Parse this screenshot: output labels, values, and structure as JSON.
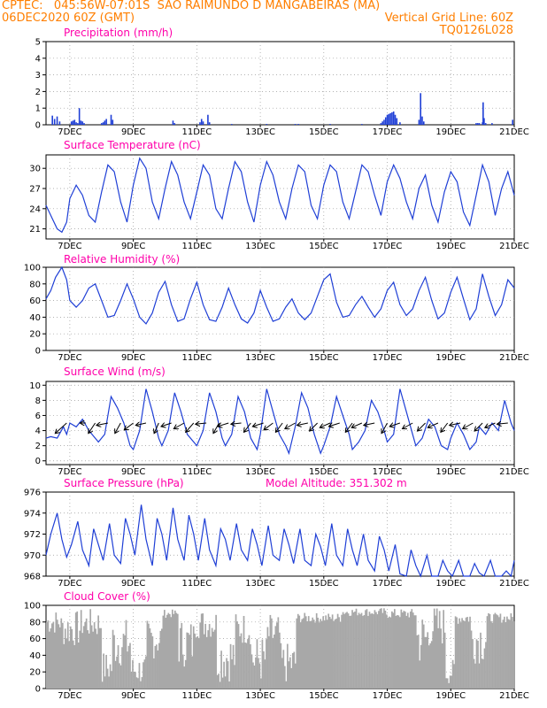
{
  "header": {
    "line1_left": "CPTEC:   045:56W-07:01S  SAO RAIMUNDO D MANGABEIRAS (MA)",
    "line2_left": "06DEC2020 60Z (GMT)",
    "line2_right": "Vertical Grid Line: 60Z",
    "line3_right": "TQ0126L028"
  },
  "colors": {
    "header": "#ff7f00",
    "panel_title": "#ff00aa",
    "line": "#1f3fd6",
    "bar": "#1f3fd6",
    "cloud": "#a8a8a8",
    "wind_arrow": "#000000",
    "grid": "#999999"
  },
  "x_axis_labels": [
    "7DEC",
    "9DEC",
    "11DEC",
    "13DEC",
    "15DEC",
    "17DEC",
    "19DEC",
    "21DEC"
  ],
  "chart_data": [
    {
      "type": "bar",
      "title": "Precipitation (mm/h)",
      "ylim": [
        0,
        5
      ],
      "yticks": [
        0,
        1,
        2,
        3,
        4,
        5
      ],
      "x_range_days": [
        6.25,
        21
      ],
      "x": [
        6.45,
        6.52,
        6.6,
        6.68,
        7.05,
        7.1,
        7.15,
        7.2,
        7.25,
        7.3,
        7.35,
        7.4,
        7.45,
        8.0,
        8.05,
        8.1,
        8.15,
        8.3,
        8.35,
        10.25,
        10.3,
        11.1,
        11.15,
        11.2,
        11.35,
        11.4,
        12.1,
        13.2,
        14.1,
        14.2,
        15.2,
        16.2,
        16.8,
        16.85,
        16.9,
        16.95,
        17.0,
        17.05,
        17.1,
        17.15,
        17.2,
        17.25,
        17.3,
        17.4,
        18.0,
        18.05,
        18.1,
        18.15,
        19.8,
        19.85,
        19.9,
        20.0,
        20.02,
        20.05,
        20.1,
        20.3,
        20.95
      ],
      "values": [
        0.55,
        0.35,
        0.5,
        0.2,
        0.2,
        0.25,
        0.3,
        0.15,
        0.1,
        1.0,
        0.25,
        0.2,
        0.1,
        0.1,
        0.15,
        0.25,
        0.35,
        0.6,
        0.3,
        0.25,
        0.1,
        0.15,
        0.35,
        0.2,
        0.6,
        0.15,
        0.05,
        0.05,
        0.05,
        0.05,
        0.05,
        0.05,
        0.1,
        0.2,
        0.3,
        0.45,
        0.6,
        0.65,
        0.7,
        0.75,
        0.8,
        0.6,
        0.4,
        0.15,
        0.3,
        1.9,
        0.5,
        0.2,
        0.1,
        0.1,
        0.1,
        0.15,
        1.35,
        0.4,
        0.1,
        0.1,
        0.3
      ]
    },
    {
      "type": "line",
      "title": "Surface Temperature (nC)",
      "ylim": [
        19.5,
        32
      ],
      "yticks": [
        21,
        24,
        27,
        30
      ],
      "x": [
        6.25,
        6.45,
        6.6,
        6.75,
        6.9,
        7.0,
        7.2,
        7.4,
        7.6,
        7.8,
        8.0,
        8.2,
        8.4,
        8.6,
        8.8,
        9.0,
        9.2,
        9.4,
        9.6,
        9.8,
        10.0,
        10.2,
        10.4,
        10.6,
        10.8,
        11.0,
        11.2,
        11.4,
        11.6,
        11.8,
        12.0,
        12.2,
        12.4,
        12.6,
        12.8,
        13.0,
        13.2,
        13.4,
        13.6,
        13.8,
        14.0,
        14.2,
        14.4,
        14.6,
        14.8,
        15.0,
        15.2,
        15.4,
        15.6,
        15.8,
        16.0,
        16.2,
        16.4,
        16.6,
        16.8,
        17.0,
        17.2,
        17.4,
        17.6,
        17.8,
        18.0,
        18.2,
        18.4,
        18.6,
        18.8,
        19.0,
        19.2,
        19.4,
        19.6,
        19.8,
        20.0,
        20.2,
        20.4,
        20.6,
        20.8,
        21.0
      ],
      "values": [
        24.5,
        22.5,
        21.0,
        20.5,
        22.0,
        25.5,
        27.5,
        26.0,
        23.0,
        22.0,
        26.5,
        30.5,
        29.5,
        25.0,
        22.0,
        27.5,
        31.5,
        30.0,
        25.0,
        22.5,
        27.0,
        31.0,
        29.0,
        25.0,
        22.5,
        26.5,
        30.5,
        29.0,
        24.0,
        22.5,
        27.0,
        31.0,
        29.5,
        25.0,
        22.0,
        27.5,
        31.0,
        29.0,
        25.0,
        22.5,
        27.0,
        30.5,
        29.5,
        24.5,
        22.5,
        27.5,
        30.5,
        29.5,
        25.0,
        22.5,
        26.5,
        30.5,
        29.5,
        26.0,
        23.0,
        28.0,
        30.5,
        28.5,
        25.0,
        22.5,
        27.0,
        29.0,
        24.5,
        22.0,
        26.5,
        29.5,
        28.0,
        23.5,
        21.5,
        26.0,
        30.5,
        28.0,
        23.0,
        27.0,
        29.5,
        26.0
      ]
    },
    {
      "type": "line",
      "title": "Relative Humidity (%)",
      "ylim": [
        0,
        100
      ],
      "yticks": [
        0,
        20,
        40,
        60,
        80,
        100
      ],
      "x": [
        6.25,
        6.4,
        6.55,
        6.75,
        6.9,
        7.0,
        7.2,
        7.4,
        7.6,
        7.8,
        8.0,
        8.2,
        8.4,
        8.6,
        8.8,
        9.0,
        9.2,
        9.4,
        9.6,
        9.8,
        10.0,
        10.2,
        10.4,
        10.6,
        10.8,
        11.0,
        11.2,
        11.4,
        11.6,
        11.8,
        12.0,
        12.2,
        12.4,
        12.6,
        12.8,
        13.0,
        13.2,
        13.4,
        13.6,
        13.8,
        14.0,
        14.2,
        14.4,
        14.6,
        14.8,
        15.0,
        15.2,
        15.4,
        15.6,
        15.8,
        16.0,
        16.2,
        16.4,
        16.6,
        16.8,
        17.0,
        17.2,
        17.4,
        17.6,
        17.8,
        18.0,
        18.2,
        18.4,
        18.6,
        18.8,
        19.0,
        19.2,
        19.4,
        19.6,
        19.8,
        20.0,
        20.2,
        20.4,
        20.6,
        20.8,
        21.0
      ],
      "values": [
        62,
        72,
        88,
        100,
        85,
        60,
        52,
        60,
        75,
        80,
        60,
        40,
        42,
        60,
        80,
        62,
        40,
        32,
        45,
        70,
        83,
        55,
        35,
        38,
        62,
        82,
        55,
        37,
        35,
        52,
        75,
        55,
        38,
        33,
        45,
        72,
        52,
        35,
        38,
        52,
        62,
        45,
        37,
        45,
        65,
        85,
        92,
        58,
        40,
        42,
        55,
        65,
        52,
        40,
        50,
        72,
        82,
        55,
        42,
        50,
        72,
        88,
        60,
        38,
        45,
        70,
        88,
        62,
        37,
        50,
        92,
        65,
        42,
        55,
        85,
        75
      ]
    },
    {
      "type": "line",
      "title": "Surface Wind (m/s)",
      "ylim": [
        -0.5,
        10.5
      ],
      "yticks": [
        0,
        2,
        4,
        6,
        8,
        10
      ],
      "x": [
        6.25,
        6.4,
        6.6,
        6.8,
        6.9,
        7.0,
        7.2,
        7.4,
        7.6,
        7.8,
        7.9,
        8.1,
        8.3,
        8.5,
        8.7,
        8.9,
        9.0,
        9.2,
        9.4,
        9.6,
        9.8,
        9.9,
        10.1,
        10.3,
        10.5,
        10.7,
        10.9,
        11.0,
        11.2,
        11.4,
        11.6,
        11.8,
        11.9,
        12.1,
        12.3,
        12.5,
        12.7,
        12.9,
        13.0,
        13.2,
        13.4,
        13.6,
        13.8,
        13.9,
        14.1,
        14.3,
        14.5,
        14.7,
        14.9,
        15.0,
        15.2,
        15.4,
        15.6,
        15.8,
        15.9,
        16.1,
        16.3,
        16.5,
        16.7,
        16.9,
        17.0,
        17.2,
        17.4,
        17.6,
        17.8,
        17.9,
        18.1,
        18.3,
        18.5,
        18.7,
        18.9,
        19.0,
        19.2,
        19.4,
        19.6,
        19.8,
        19.9,
        20.1,
        20.3,
        20.5,
        20.7,
        20.9,
        21.0
      ],
      "values": [
        3.0,
        3.2,
        3.0,
        4.5,
        3.5,
        5.0,
        4.5,
        5.5,
        4.0,
        3.0,
        2.5,
        3.5,
        8.5,
        7.0,
        5.0,
        2.0,
        1.5,
        4.0,
        9.5,
        6.5,
        3.0,
        2.0,
        4.0,
        9.0,
        6.5,
        3.5,
        2.5,
        2.0,
        4.0,
        9.0,
        6.5,
        3.0,
        2.0,
        3.5,
        8.5,
        6.5,
        3.0,
        1.5,
        3.5,
        9.5,
        6.5,
        3.5,
        2.0,
        1.0,
        4.5,
        9.0,
        7.0,
        3.5,
        1.0,
        2.0,
        4.5,
        8.5,
        6.0,
        3.5,
        1.5,
        2.5,
        4.0,
        8.0,
        6.5,
        4.0,
        2.5,
        3.5,
        9.5,
        6.5,
        3.5,
        2.0,
        3.0,
        5.5,
        4.5,
        2.0,
        1.5,
        3.0,
        5.0,
        3.5,
        1.5,
        2.5,
        4.5,
        3.5,
        5.0,
        4.0,
        8.0,
        5.0,
        4.0
      ]
    },
    {
      "type": "line",
      "title": "Surface Pressure (hPa)",
      "annotation": "Model Altitude: 351.302  m",
      "ylim": [
        968,
        976
      ],
      "yticks": [
        968,
        970,
        972,
        974,
        976
      ],
      "x": [
        6.25,
        6.4,
        6.6,
        6.75,
        6.9,
        7.05,
        7.25,
        7.4,
        7.6,
        7.75,
        7.9,
        8.05,
        8.25,
        8.4,
        8.6,
        8.75,
        8.9,
        9.05,
        9.25,
        9.4,
        9.6,
        9.75,
        9.9,
        10.05,
        10.25,
        10.4,
        10.6,
        10.75,
        10.9,
        11.05,
        11.25,
        11.4,
        11.6,
        11.75,
        11.9,
        12.05,
        12.25,
        12.4,
        12.6,
        12.75,
        12.9,
        13.05,
        13.25,
        13.4,
        13.6,
        13.75,
        13.9,
        14.05,
        14.25,
        14.4,
        14.6,
        14.75,
        14.9,
        15.05,
        15.25,
        15.4,
        15.6,
        15.75,
        15.9,
        16.05,
        16.25,
        16.4,
        16.6,
        16.75,
        16.9,
        17.05,
        17.25,
        17.4,
        17.6,
        17.75,
        17.9,
        18.05,
        18.25,
        18.4,
        18.6,
        18.75,
        18.9,
        19.05,
        19.25,
        19.4,
        19.6,
        19.75,
        19.9,
        20.05,
        20.25,
        20.4,
        20.6,
        20.75,
        20.9,
        21.0
      ],
      "values": [
        970.0,
        972.0,
        974.0,
        971.5,
        969.8,
        971.0,
        973.2,
        970.5,
        969.0,
        972.5,
        971.0,
        969.5,
        973.0,
        970.0,
        969.2,
        973.5,
        972.0,
        970.0,
        974.8,
        971.5,
        969.0,
        973.5,
        972.0,
        969.5,
        974.5,
        971.5,
        969.5,
        973.8,
        972.0,
        969.5,
        973.5,
        970.5,
        969.0,
        972.5,
        971.5,
        969.5,
        973.0,
        970.5,
        969.5,
        972.5,
        971.0,
        969.0,
        972.8,
        970.0,
        969.5,
        972.5,
        971.0,
        969.2,
        972.5,
        969.5,
        969.0,
        972.0,
        970.8,
        969.0,
        973.0,
        970.0,
        969.0,
        972.5,
        970.5,
        969.0,
        972.0,
        969.5,
        968.5,
        971.8,
        970.5,
        968.5,
        971.0,
        968.2,
        968.0,
        970.5,
        969.0,
        968.0,
        970.0,
        968.0,
        968.0,
        969.5,
        968.5,
        968.0,
        969.5,
        968.0,
        968.0,
        969.2,
        968.3,
        968.0,
        969.5,
        968.0,
        968.0,
        968.5,
        968.0,
        969.5
      ]
    },
    {
      "type": "bar",
      "title": "Cloud Cover (%)",
      "ylim": [
        0,
        100
      ],
      "yticks": [
        0,
        20,
        40,
        60,
        80,
        100
      ],
      "x_range_days": [
        6.25,
        21
      ],
      "segments": [
        {
          "from": 6.25,
          "to": 6.7,
          "base": 80,
          "var": 15
        },
        {
          "from": 6.7,
          "to": 7.3,
          "base": 72,
          "var": 22
        },
        {
          "from": 7.3,
          "to": 8.0,
          "base": 78,
          "var": 18
        },
        {
          "from": 8.0,
          "to": 8.3,
          "base": 25,
          "var": 20
        },
        {
          "from": 8.3,
          "to": 8.9,
          "base": 55,
          "var": 30
        },
        {
          "from": 8.9,
          "to": 9.4,
          "base": 22,
          "var": 18
        },
        {
          "from": 9.4,
          "to": 9.9,
          "base": 60,
          "var": 25
        },
        {
          "from": 9.9,
          "to": 10.4,
          "base": 90,
          "var": 5
        },
        {
          "from": 10.4,
          "to": 10.9,
          "base": 55,
          "var": 30
        },
        {
          "from": 10.9,
          "to": 11.6,
          "base": 78,
          "var": 18
        },
        {
          "from": 11.6,
          "to": 12.2,
          "base": 38,
          "var": 30
        },
        {
          "from": 12.2,
          "to": 12.7,
          "base": 72,
          "var": 20
        },
        {
          "from": 12.7,
          "to": 13.2,
          "base": 35,
          "var": 30
        },
        {
          "from": 13.2,
          "to": 13.6,
          "base": 65,
          "var": 25
        },
        {
          "from": 13.6,
          "to": 14.1,
          "base": 30,
          "var": 25
        },
        {
          "from": 14.1,
          "to": 15.5,
          "base": 85,
          "var": 6
        },
        {
          "from": 15.5,
          "to": 16.9,
          "base": 92,
          "var": 5
        },
        {
          "from": 16.9,
          "to": 17.9,
          "base": 90,
          "var": 6
        },
        {
          "from": 17.9,
          "to": 18.3,
          "base": 60,
          "var": 35
        },
        {
          "from": 18.3,
          "to": 18.8,
          "base": 75,
          "var": 25
        },
        {
          "from": 18.8,
          "to": 19.1,
          "base": 20,
          "var": 15
        },
        {
          "from": 19.1,
          "to": 19.6,
          "base": 85,
          "var": 8
        },
        {
          "from": 19.6,
          "to": 20.1,
          "base": 60,
          "var": 30
        },
        {
          "from": 20.1,
          "to": 21.0,
          "base": 85,
          "var": 6
        }
      ]
    }
  ],
  "wind_vectors": [
    {
      "x": 6.9,
      "u": -1.0,
      "v": 0.9
    },
    {
      "x": 7.5,
      "u": -0.5,
      "v": 0.0
    },
    {
      "x": 7.8,
      "u": -0.6,
      "v": 0.9
    },
    {
      "x": 8.2,
      "u": -1.0,
      "v": 0.2
    },
    {
      "x": 8.6,
      "u": -0.5,
      "v": 0.9
    },
    {
      "x": 9.0,
      "u": -0.8,
      "v": 0.6
    },
    {
      "x": 9.4,
      "u": -0.9,
      "v": 0.2
    },
    {
      "x": 9.8,
      "u": -0.4,
      "v": 0.9
    },
    {
      "x": 10.2,
      "u": -0.9,
      "v": 0.3
    },
    {
      "x": 10.6,
      "u": -0.9,
      "v": 0.5
    },
    {
      "x": 10.9,
      "u": -0.7,
      "v": 0.8
    },
    {
      "x": 11.3,
      "u": -0.95,
      "v": 0.1
    },
    {
      "x": 11.7,
      "u": -0.5,
      "v": 0.9
    },
    {
      "x": 12.0,
      "u": -0.95,
      "v": 0.3
    },
    {
      "x": 12.4,
      "u": -0.9,
      "v": 0.1
    },
    {
      "x": 12.7,
      "u": -0.6,
      "v": 0.8
    },
    {
      "x": 13.1,
      "u": -0.95,
      "v": 0.3
    },
    {
      "x": 13.4,
      "u": -0.8,
      "v": 0.6
    },
    {
      "x": 13.7,
      "u": -0.6,
      "v": 0.8
    },
    {
      "x": 14.1,
      "u": -0.9,
      "v": 0.5
    },
    {
      "x": 14.5,
      "u": -0.95,
      "v": 0.2
    },
    {
      "x": 14.8,
      "u": -0.7,
      "v": 0.7
    },
    {
      "x": 15.2,
      "u": -0.9,
      "v": 0.4
    },
    {
      "x": 15.5,
      "u": -0.95,
      "v": 0.3
    },
    {
      "x": 15.9,
      "u": -0.6,
      "v": 0.8
    },
    {
      "x": 16.2,
      "u": -0.9,
      "v": 0.4
    },
    {
      "x": 16.6,
      "u": -0.95,
      "v": 0.2
    },
    {
      "x": 17.0,
      "u": -0.5,
      "v": 0.9
    },
    {
      "x": 17.4,
      "u": -0.9,
      "v": 0.3
    },
    {
      "x": 17.8,
      "u": -0.9,
      "v": 0.5
    },
    {
      "x": 18.2,
      "u": -0.7,
      "v": 0.7
    },
    {
      "x": 18.6,
      "u": -0.9,
      "v": 0.4
    },
    {
      "x": 18.9,
      "u": -0.6,
      "v": 0.8
    },
    {
      "x": 19.3,
      "u": -0.95,
      "v": 0.2
    },
    {
      "x": 19.7,
      "u": -0.9,
      "v": 0.5
    },
    {
      "x": 20.0,
      "u": -0.7,
      "v": 0.7
    },
    {
      "x": 20.4,
      "u": -0.9,
      "v": 0.4
    },
    {
      "x": 20.8,
      "u": -0.95,
      "v": 0.1
    }
  ]
}
